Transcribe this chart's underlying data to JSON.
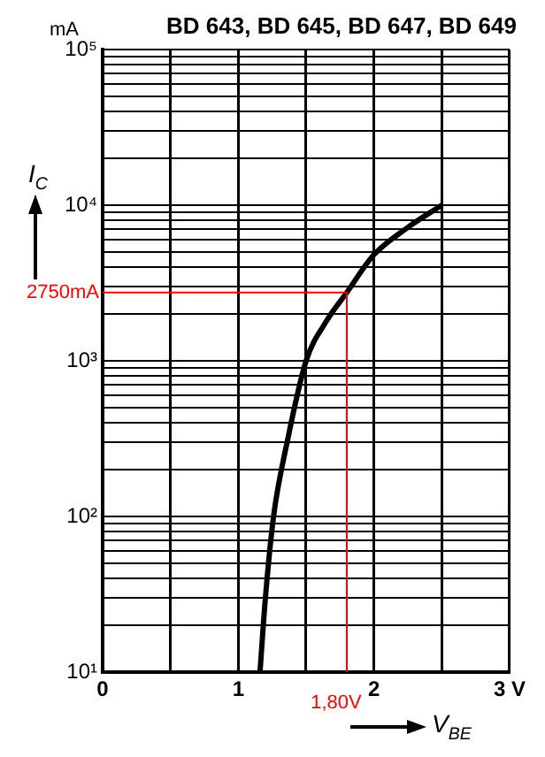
{
  "chart_data": {
    "type": "line",
    "title": "BD 643, BD 645, BD 647, BD 649",
    "xlabel": "V$_{BE}$",
    "ylabel": "I$_{C}$",
    "annotations": [
      "mA"
    ],
    "x": [
      1.16,
      1.2,
      1.26,
      1.36,
      1.5,
      1.65,
      1.8,
      2.0,
      2.25,
      2.5
    ],
    "series": [
      {
        "color": "#000000",
        "values": [
          10,
          30,
          100,
          300,
          1000,
          1800,
          2750,
          4800,
          7200,
          10000
        ]
      }
    ],
    "xlim": [
      0,
      3
    ],
    "ylim": [
      10,
      100000
    ],
    "log": "y",
    "grid": true,
    "legend": false,
    "marker": "none",
    "line_style": "solid",
    "xticks": [
      0,
      {
        "value": 0.5,
        "label": null
      },
      1,
      {
        "value": 1.5,
        "label": null
      },
      2,
      {
        "value": 2.5,
        "label": null
      },
      {
        "value": 3,
        "label": "3 V"
      }
    ],
    "yticks": [
      {
        "value": 10,
        "label": "10¹"
      },
      {
        "value": 20,
        "label": null
      },
      {
        "value": 30,
        "label": null
      },
      {
        "value": 40,
        "label": null
      },
      {
        "value": 50,
        "label": null
      },
      {
        "value": 60,
        "label": null
      },
      {
        "value": 70,
        "label": null
      },
      {
        "value": 80,
        "label": null
      },
      {
        "value": 90,
        "label": null
      },
      {
        "value": 100,
        "label": "10²"
      },
      {
        "value": 200,
        "label": null
      },
      {
        "value": 300,
        "label": null
      },
      {
        "value": 400,
        "label": null
      },
      {
        "value": 500,
        "label": null
      },
      {
        "value": 600,
        "label": null
      },
      {
        "value": 700,
        "label": null
      },
      {
        "value": 800,
        "label": null
      },
      {
        "value": 900,
        "label": null
      },
      {
        "value": 1000,
        "label": "10³"
      },
      {
        "value": 2000,
        "label": null
      },
      {
        "value": 3000,
        "label": null
      },
      {
        "value": 4000,
        "label": null
      },
      {
        "value": 5000,
        "label": null
      },
      {
        "value": 6000,
        "label": null
      },
      {
        "value": 7000,
        "label": null
      },
      {
        "value": 8000,
        "label": null
      },
      {
        "value": 9000,
        "label": null
      },
      {
        "value": 10000,
        "label": "10⁴"
      },
      {
        "value": 20000,
        "label": null
      },
      {
        "value": 30000,
        "label": null
      },
      {
        "value": 40000,
        "label": null
      },
      {
        "value": 50000,
        "label": null
      },
      {
        "value": 60000,
        "label": null
      },
      {
        "value": 70000,
        "label": null
      },
      {
        "value": 80000,
        "label": null
      },
      {
        "value": 90000,
        "label": null
      },
      {
        "value": 100000,
        "label": "10⁵"
      }
    ],
    "ref_lines": [
      {
        "axis": "y",
        "value": 2750,
        "label": "2750mA",
        "color": "#ff0000"
      },
      {
        "axis": "x",
        "value": 1.8,
        "label": "1,80V",
        "color": "#ff0000"
      }
    ]
  }
}
